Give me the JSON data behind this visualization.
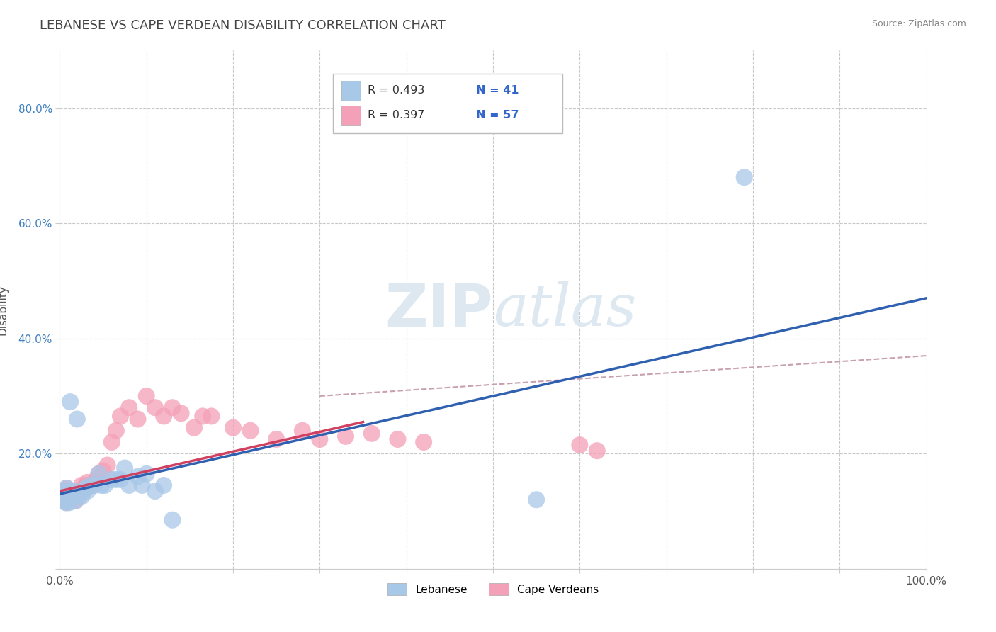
{
  "title": "LEBANESE VS CAPE VERDEAN DISABILITY CORRELATION CHART",
  "source": "Source: ZipAtlas.com",
  "ylabel": "Disability",
  "xlim": [
    0,
    1.0
  ],
  "ylim": [
    0,
    0.9
  ],
  "x_ticks": [
    0.0,
    0.1,
    0.2,
    0.3,
    0.4,
    0.5,
    0.6,
    0.7,
    0.8,
    0.9,
    1.0
  ],
  "x_tick_labels": [
    "0.0%",
    "",
    "",
    "",
    "",
    "",
    "",
    "",
    "",
    "",
    "100.0%"
  ],
  "y_ticks": [
    0.0,
    0.2,
    0.4,
    0.6,
    0.8
  ],
  "y_tick_labels": [
    "",
    "20.0%",
    "40.0%",
    "60.0%",
    "80.0%"
  ],
  "legend_r1": "R = 0.493",
  "legend_n1": "N = 41",
  "legend_r2": "R = 0.397",
  "legend_n2": "N = 57",
  "legend_label1": "Lebanese",
  "legend_label2": "Cape Verdeans",
  "watermark_zip": "ZIP",
  "watermark_atlas": "atlas",
  "blue_color": "#a8c8e8",
  "pink_color": "#f4a0b8",
  "blue_line_color": "#3060b0",
  "pink_line_color": "#d04060",
  "dashed_line_color": "#c8a0b0",
  "background_color": "#ffffff",
  "grid_color": "#c8c8c8",
  "blue_line_x0": 0.0,
  "blue_line_y0": 0.13,
  "blue_line_x1": 1.0,
  "blue_line_y1": 0.47,
  "pink_line_x0": 0.0,
  "pink_line_y0": 0.135,
  "pink_line_x1": 0.35,
  "pink_line_y1": 0.255,
  "dashed_line_x0": 0.3,
  "dashed_line_y0": 0.3,
  "dashed_line_x1": 1.0,
  "dashed_line_y1": 0.37,
  "lebanese_x": [
    0.001,
    0.002,
    0.003,
    0.003,
    0.004,
    0.005,
    0.006,
    0.007,
    0.008,
    0.009,
    0.01,
    0.011,
    0.012,
    0.013,
    0.015,
    0.016,
    0.018,
    0.02,
    0.022,
    0.025,
    0.028,
    0.03,
    0.032,
    0.035,
    0.04,
    0.045,
    0.048,
    0.052,
    0.06,
    0.065,
    0.07,
    0.075,
    0.08,
    0.09,
    0.095,
    0.1,
    0.11,
    0.12,
    0.13,
    0.55,
    0.79
  ],
  "lebanese_y": [
    0.125,
    0.13,
    0.12,
    0.135,
    0.118,
    0.122,
    0.128,
    0.115,
    0.14,
    0.125,
    0.13,
    0.115,
    0.29,
    0.135,
    0.125,
    0.135,
    0.118,
    0.26,
    0.13,
    0.125,
    0.135,
    0.14,
    0.135,
    0.145,
    0.145,
    0.165,
    0.145,
    0.145,
    0.155,
    0.155,
    0.155,
    0.175,
    0.145,
    0.16,
    0.145,
    0.165,
    0.135,
    0.145,
    0.085,
    0.12,
    0.68
  ],
  "capeverdean_x": [
    0.001,
    0.002,
    0.003,
    0.004,
    0.005,
    0.006,
    0.006,
    0.007,
    0.008,
    0.008,
    0.009,
    0.01,
    0.01,
    0.011,
    0.012,
    0.013,
    0.014,
    0.015,
    0.016,
    0.018,
    0.02,
    0.022,
    0.025,
    0.028,
    0.03,
    0.032,
    0.035,
    0.038,
    0.04,
    0.042,
    0.045,
    0.05,
    0.055,
    0.06,
    0.065,
    0.07,
    0.08,
    0.09,
    0.1,
    0.11,
    0.12,
    0.13,
    0.14,
    0.155,
    0.165,
    0.175,
    0.2,
    0.22,
    0.25,
    0.28,
    0.3,
    0.33,
    0.36,
    0.39,
    0.42,
    0.6,
    0.62
  ],
  "capeverdean_y": [
    0.13,
    0.125,
    0.12,
    0.135,
    0.118,
    0.128,
    0.122,
    0.125,
    0.115,
    0.14,
    0.125,
    0.13,
    0.118,
    0.135,
    0.125,
    0.122,
    0.128,
    0.125,
    0.13,
    0.118,
    0.135,
    0.125,
    0.145,
    0.14,
    0.145,
    0.15,
    0.145,
    0.145,
    0.15,
    0.155,
    0.165,
    0.17,
    0.18,
    0.22,
    0.24,
    0.265,
    0.28,
    0.26,
    0.3,
    0.28,
    0.265,
    0.28,
    0.27,
    0.245,
    0.265,
    0.265,
    0.245,
    0.24,
    0.225,
    0.24,
    0.225,
    0.23,
    0.235,
    0.225,
    0.22,
    0.215,
    0.205
  ]
}
